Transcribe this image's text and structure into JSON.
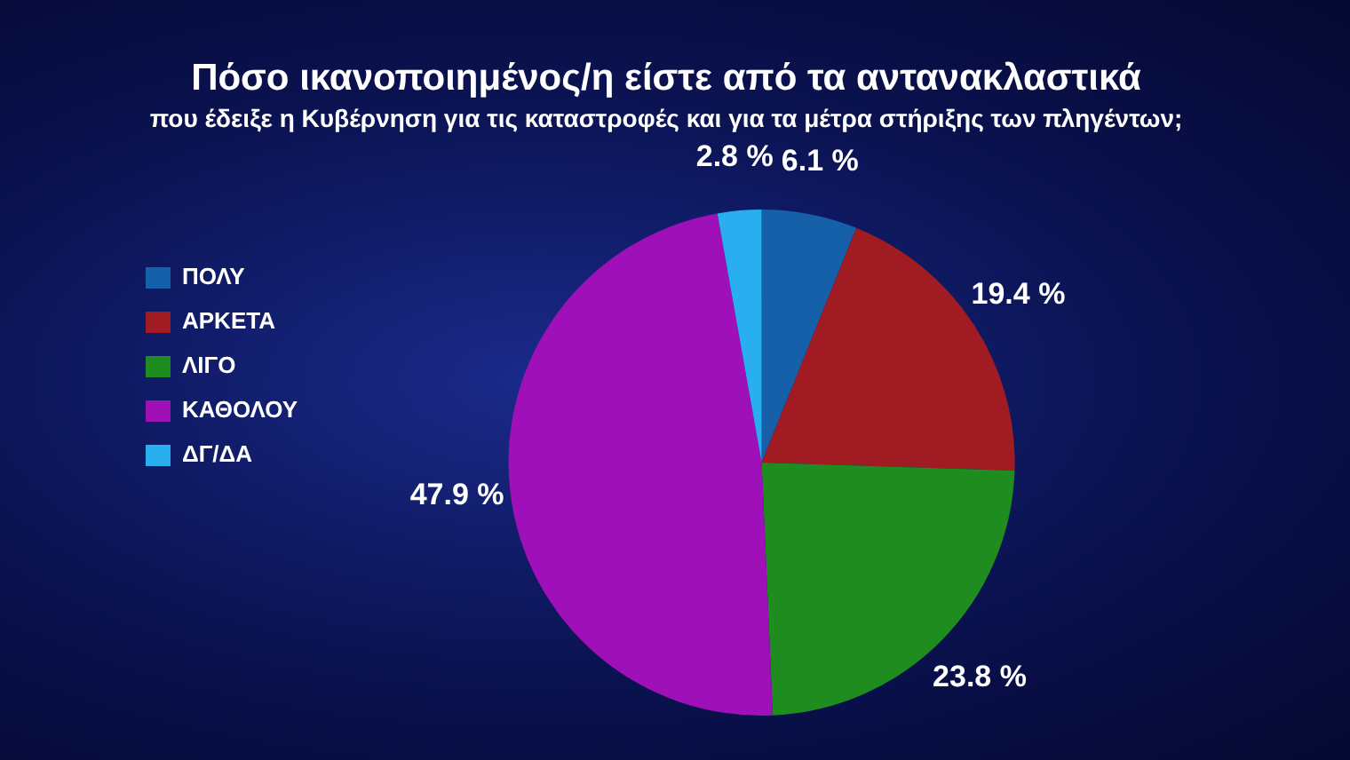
{
  "chart_data": {
    "type": "pie",
    "title": "Πόσο ικανοποιημένος/η είστε από τα αντανακλαστικά",
    "subtitle": "που έδειξε η Κυβέρνηση για τις καταστροφές και για τα μέτρα στήριξης των πληγέντων;",
    "categories": [
      "ΠΟΛΥ",
      "ΑΡΚΕΤΑ",
      "ΛΙΓΟ",
      "ΚΑΘΟΛΟΥ",
      "ΔΓ/ΔΑ"
    ],
    "values": [
      6.1,
      19.4,
      23.8,
      47.9,
      2.8
    ],
    "colors": [
      "#1560a8",
      "#a01c22",
      "#1e8c1e",
      "#a010b8",
      "#29aef0"
    ],
    "value_labels": [
      "6.1 %",
      "19.4 %",
      "23.8 %",
      "47.9 %",
      "2.8 %"
    ],
    "legend": "left"
  }
}
